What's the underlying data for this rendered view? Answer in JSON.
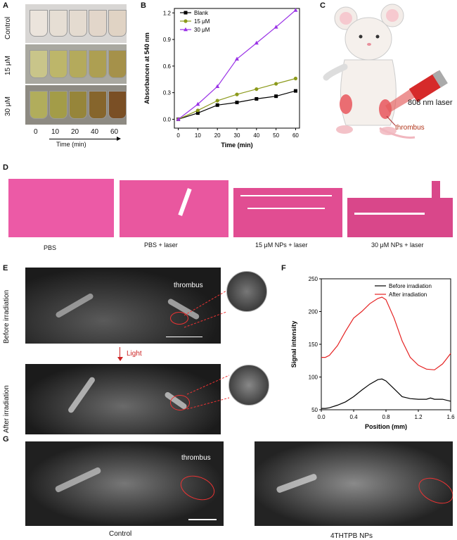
{
  "panels": {
    "A": "A",
    "B": "B",
    "C": "C",
    "D": "D",
    "E": "E",
    "F": "F",
    "G": "G"
  },
  "panelA": {
    "rows": [
      "Control",
      "15 μM",
      "30 μM"
    ],
    "times": [
      "0",
      "10",
      "20",
      "40",
      "60"
    ],
    "time_axis_label": "Time (min)"
  },
  "panelC": {
    "laser_label": "808 nm laser",
    "thrombus_label": "thrombus"
  },
  "panelD": {
    "labels": [
      "PBS",
      "PBS + laser",
      "15 μM NPs + laser",
      "30 μM NPs + laser"
    ]
  },
  "panelE": {
    "row1": "Before irradiation",
    "row2": "After irradiation",
    "light_label": "Light",
    "thrombus_label": "thrombus"
  },
  "panelG": {
    "thrombus_label": "thrombus",
    "left_caption": "Control",
    "right_caption": "4THTPB NPs"
  },
  "chart_data": [
    {
      "type": "line",
      "panel": "B",
      "xlabel": "Time (min)",
      "ylabel": "Absorbancen at 540 nm",
      "xlim": [
        -2,
        62
      ],
      "ylim": [
        -0.1,
        1.25
      ],
      "xticks": [
        0,
        10,
        20,
        30,
        40,
        50,
        60
      ],
      "yticks": [
        0.0,
        0.3,
        0.6,
        0.9,
        1.2
      ],
      "legend": "top-left",
      "x": [
        0,
        10,
        20,
        30,
        40,
        50,
        60
      ],
      "series": [
        {
          "name": "Blank",
          "color": "#000000",
          "marker": "square",
          "values": [
            0.0,
            0.07,
            0.16,
            0.19,
            0.23,
            0.26,
            0.32
          ]
        },
        {
          "name": "15 μM",
          "color": "#8c9a1c",
          "marker": "circle",
          "values": [
            0.0,
            0.1,
            0.21,
            0.28,
            0.34,
            0.4,
            0.46
          ]
        },
        {
          "name": "30 μM",
          "color": "#9a33e6",
          "marker": "triangle",
          "values": [
            0.0,
            0.17,
            0.37,
            0.68,
            0.86,
            1.04,
            1.23
          ]
        }
      ]
    },
    {
      "type": "line",
      "panel": "F",
      "xlabel": "Position (mm)",
      "ylabel": "Signal intensity",
      "xlim": [
        0.0,
        1.6
      ],
      "ylim": [
        50,
        250
      ],
      "xticks": [
        0.0,
        0.4,
        0.8,
        1.2,
        1.6
      ],
      "yticks": [
        50,
        100,
        150,
        200,
        250
      ],
      "legend": "top-right",
      "series": [
        {
          "name": "Before irradiation",
          "color": "#000000",
          "x": [
            0.0,
            0.05,
            0.1,
            0.2,
            0.3,
            0.4,
            0.5,
            0.6,
            0.7,
            0.75,
            0.8,
            0.9,
            1.0,
            1.1,
            1.2,
            1.3,
            1.35,
            1.4,
            1.5,
            1.6
          ],
          "values": [
            52,
            52,
            53,
            57,
            62,
            70,
            80,
            89,
            96,
            97,
            94,
            82,
            70,
            67,
            66,
            66,
            68,
            66,
            66,
            63
          ]
        },
        {
          "name": "After irradiation",
          "color": "#e52222",
          "x": [
            0.0,
            0.05,
            0.1,
            0.2,
            0.3,
            0.4,
            0.5,
            0.6,
            0.7,
            0.75,
            0.8,
            0.9,
            1.0,
            1.1,
            1.2,
            1.3,
            1.4,
            1.5,
            1.55,
            1.6
          ],
          "values": [
            130,
            130,
            133,
            148,
            170,
            190,
            200,
            212,
            220,
            222,
            218,
            190,
            155,
            130,
            118,
            112,
            111,
            120,
            128,
            136
          ]
        }
      ]
    }
  ]
}
